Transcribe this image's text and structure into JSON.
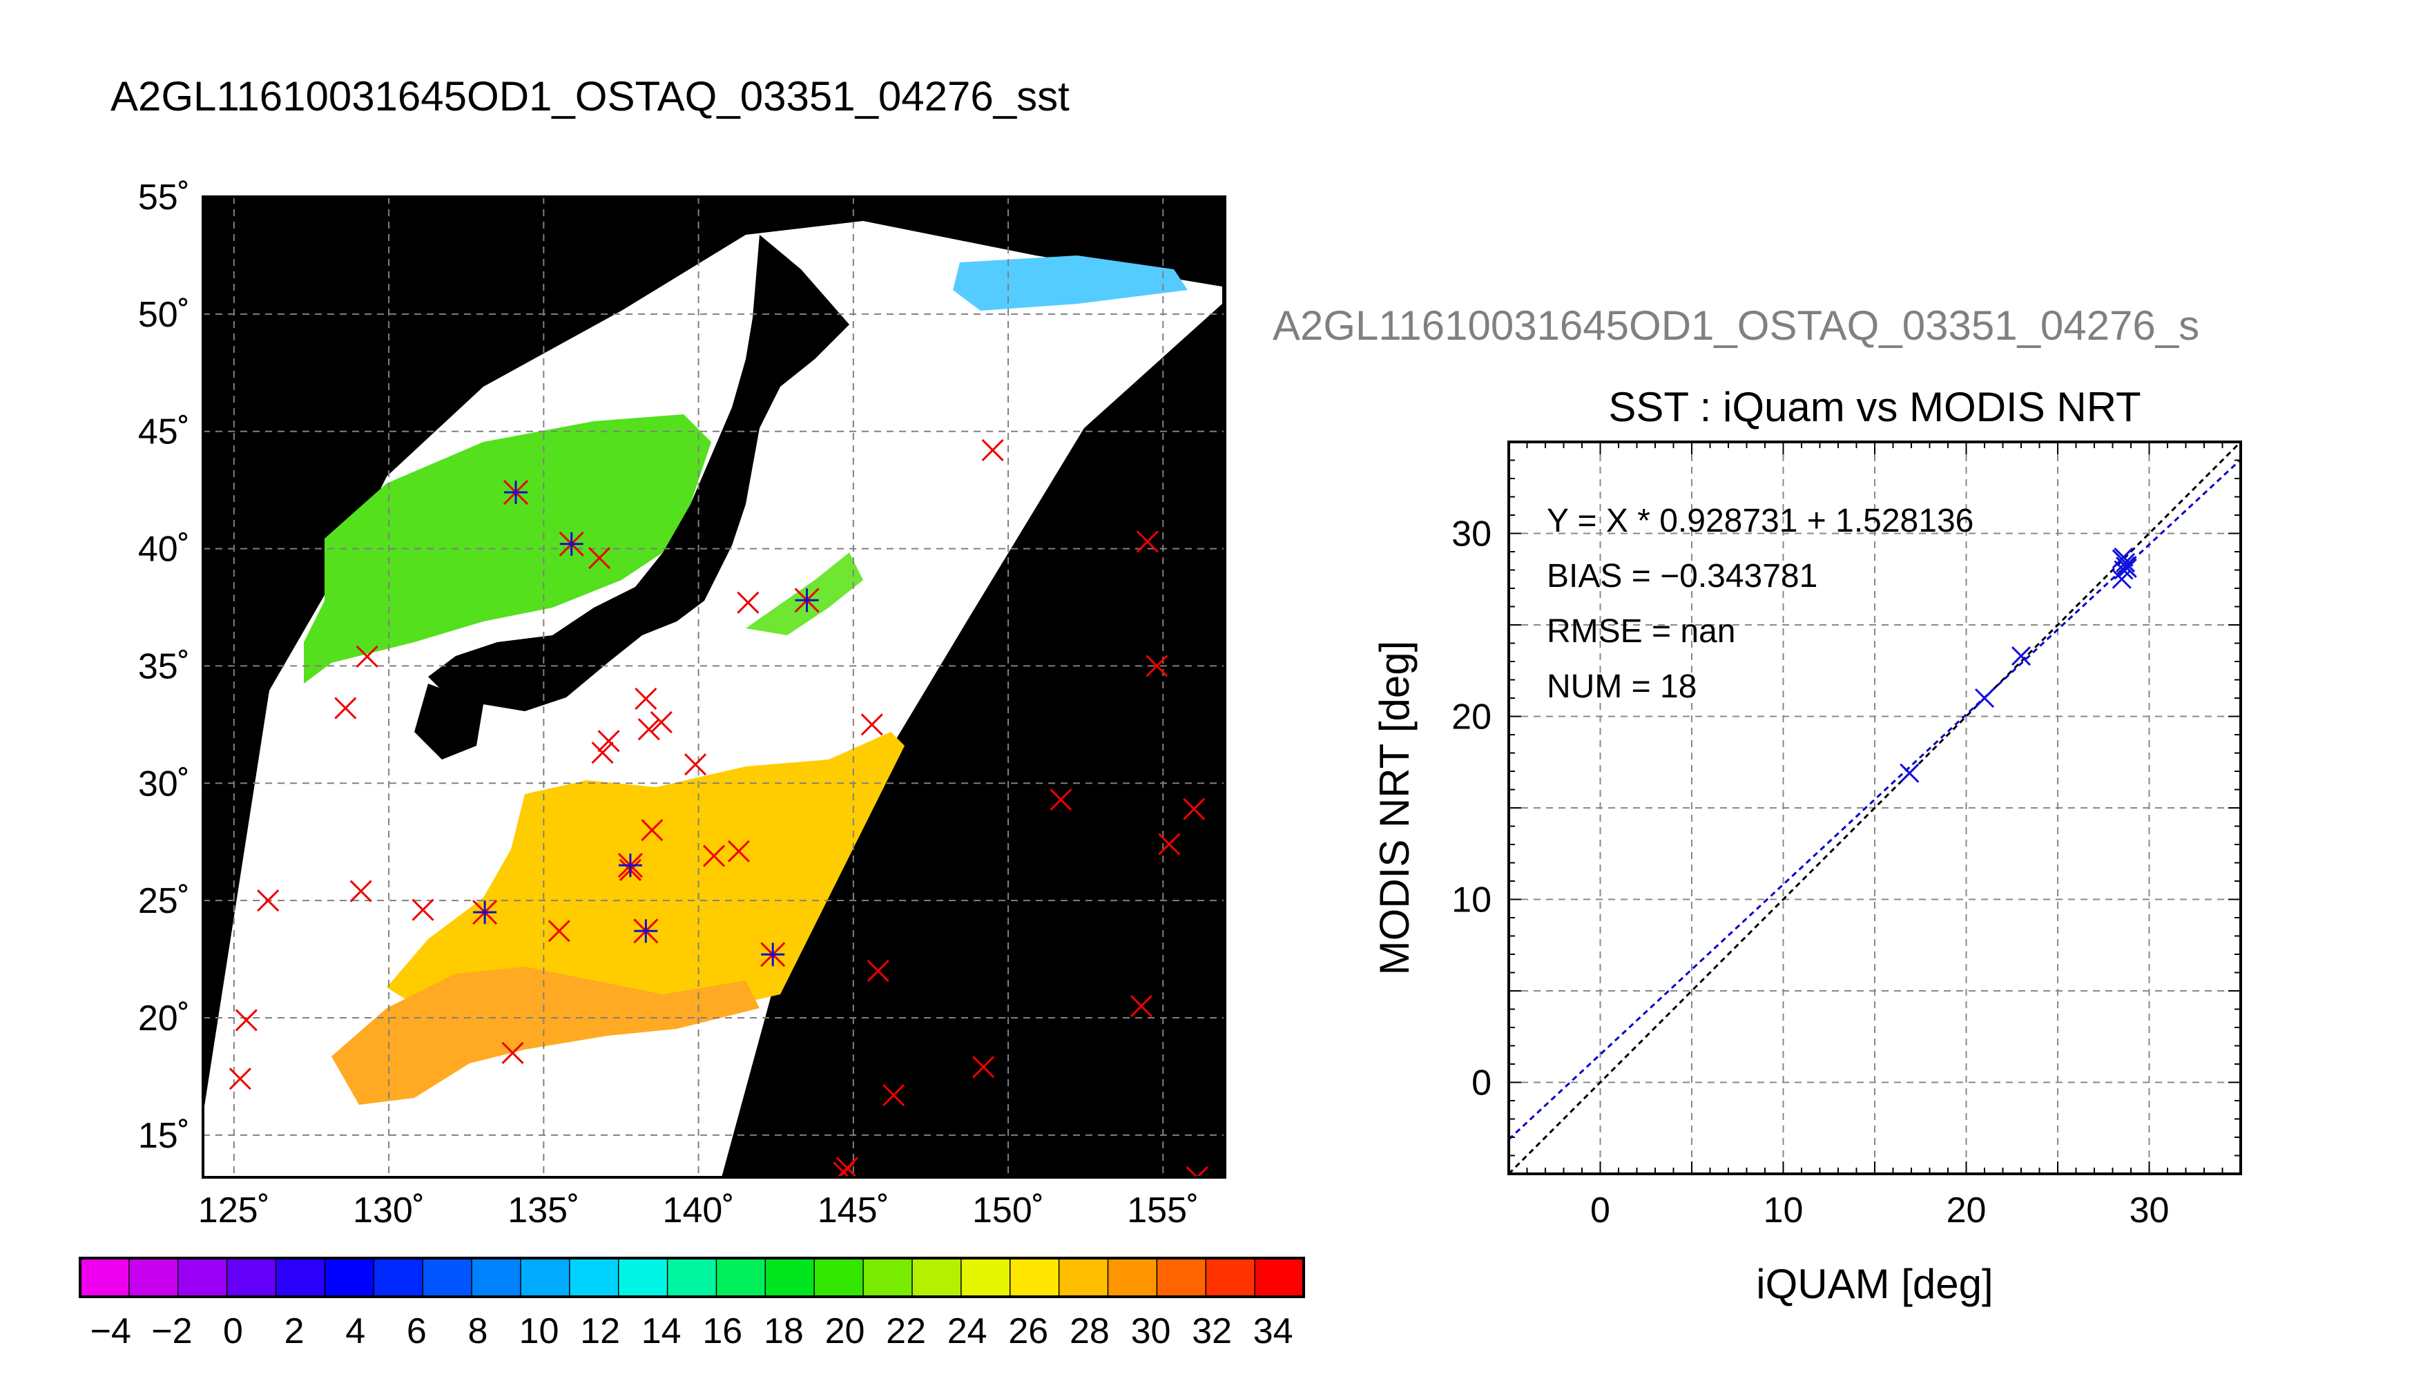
{
  "map_title": "A2GL11610031645OD1_OSTAQ_03351_04276_sst",
  "scatter_title_clipped": "A2GL11610031645OD1_OSTAQ_03351_04276_s",
  "map": {
    "lon_labels": [
      "125˚",
      "130˚",
      "135˚",
      "140˚",
      "145˚",
      "150˚",
      "155˚"
    ],
    "lat_labels": [
      "15˚",
      "20˚",
      "25˚",
      "30˚",
      "35˚",
      "40˚",
      "45˚",
      "50˚",
      "55˚"
    ],
    "lon_values": [
      125,
      130,
      135,
      140,
      145,
      150,
      155
    ],
    "lat_values": [
      15,
      20,
      25,
      30,
      35,
      40,
      45,
      50,
      55
    ],
    "lon_range": [
      124,
      157
    ],
    "lat_range": [
      13.2,
      55
    ],
    "red_x_marks": [
      [
        125.2,
        17.4
      ],
      [
        125.4,
        19.9
      ],
      [
        126.1,
        25.0
      ],
      [
        129.1,
        25.4
      ],
      [
        129.3,
        35.4
      ],
      [
        128.6,
        33.2
      ],
      [
        131.1,
        24.6
      ],
      [
        134.0,
        18.5
      ],
      [
        135.5,
        23.7
      ],
      [
        136.8,
        39.6
      ],
      [
        136.9,
        31.3
      ],
      [
        137.1,
        31.8
      ],
      [
        137.8,
        26.3
      ],
      [
        138.3,
        33.6
      ],
      [
        138.4,
        32.3
      ],
      [
        138.5,
        28.0
      ],
      [
        138.8,
        32.6
      ],
      [
        139.9,
        30.8
      ],
      [
        140.5,
        26.9
      ],
      [
        141.3,
        27.1
      ],
      [
        141.6,
        37.7
      ],
      [
        145.6,
        32.5
      ],
      [
        145.8,
        22.0
      ],
      [
        146.3,
        16.7
      ],
      [
        149.2,
        17.9
      ],
      [
        149.5,
        44.2
      ],
      [
        151.7,
        29.3
      ],
      [
        154.3,
        20.5
      ],
      [
        154.5,
        40.3
      ],
      [
        154.8,
        35.0
      ],
      [
        155.2,
        27.4
      ],
      [
        156.0,
        28.9
      ],
      [
        156.1,
        13.2
      ],
      [
        144.8,
        13.6
      ],
      [
        144.7,
        13.4
      ]
    ],
    "blue_star_marks": [
      [
        134.1,
        42.4
      ],
      [
        135.9,
        40.2
      ],
      [
        137.8,
        26.5
      ],
      [
        133.1,
        24.5
      ],
      [
        138.3,
        23.7
      ],
      [
        142.4,
        22.7
      ],
      [
        143.5,
        37.8
      ]
    ]
  },
  "colorbar": {
    "tick_labels": [
      "−4",
      "−2",
      "0",
      "2",
      "4",
      "6",
      "8",
      "10",
      "12",
      "14",
      "16",
      "18",
      "20",
      "22",
      "24",
      "26",
      "28",
      "30",
      "32",
      "34"
    ],
    "colors": [
      "#ee00ee",
      "#c800f0",
      "#9a00f5",
      "#6400f8",
      "#2a00fa",
      "#0000ff",
      "#0028ff",
      "#0055ff",
      "#0082ff",
      "#00aaff",
      "#00d2ff",
      "#00f5e6",
      "#00f5a0",
      "#00ee5a",
      "#00e61e",
      "#32e600",
      "#78eb00",
      "#b4f000",
      "#e6f500",
      "#ffe600",
      "#ffbe00",
      "#ff9600",
      "#ff6400",
      "#ff3200",
      "#ff0000"
    ]
  },
  "chart_data": [
    {
      "type": "map",
      "title": "A2GL11610031645OD1_OSTAQ_03351_04276_sst",
      "colorbar_range": [
        -5,
        35
      ]
    },
    {
      "type": "scatter",
      "title": "SST : iQuam vs MODIS NRT",
      "xlabel": "iQUAM [deg]",
      "ylabel": "MODIS NRT [deg]",
      "xlim": [
        -5,
        35
      ],
      "ylim": [
        -5,
        35
      ],
      "x_ticks": [
        0,
        10,
        20,
        30
      ],
      "y_ticks": [
        0,
        10,
        20,
        30
      ],
      "grid": true,
      "points": [
        [
          16.9,
          16.9
        ],
        [
          21.0,
          21.0
        ],
        [
          23.0,
          23.3
        ],
        [
          28.5,
          27.5
        ],
        [
          28.6,
          28.0
        ],
        [
          28.7,
          28.2
        ],
        [
          28.7,
          28.4
        ],
        [
          28.5,
          28.6
        ],
        [
          28.6,
          28.7
        ],
        [
          28.8,
          28.1
        ]
      ],
      "fit_line": {
        "slope": 0.928731,
        "intercept": 1.528136
      },
      "identity_line": {
        "slope": 1,
        "intercept": 0
      },
      "stats": {
        "fit_label": "Y = X * 0.928731 + 1.528136",
        "bias_label": "BIAS = −0.343781",
        "rmse_label": "RMSE = nan",
        "num_label": "NUM = 18"
      }
    }
  ]
}
